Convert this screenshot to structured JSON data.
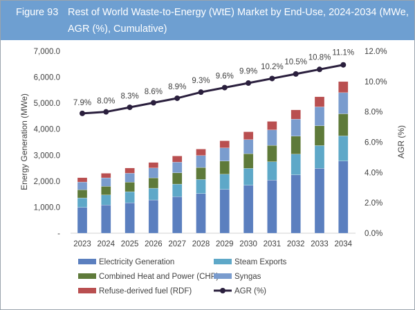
{
  "header": {
    "figure_label": "Figure 93",
    "title": "Rest of World Waste-to-Energy (WtE) Market by End-Use, 2024-2034 (MWe, AGR (%), Cumulative)"
  },
  "chart_data": {
    "type": "bar",
    "stacked": true,
    "categories": [
      "2023",
      "2024",
      "2025",
      "2026",
      "2027",
      "2028",
      "2029",
      "2030",
      "2031",
      "2032",
      "2033",
      "2034"
    ],
    "series": [
      {
        "name": "Electricity Generation",
        "color": "#5b7fbf",
        "values": [
          993,
          1082,
          1170,
          1277,
          1401,
          1525,
          1684,
          1844,
          2039,
          2243,
          2491,
          2774
        ]
      },
      {
        "name": "Steam Exports",
        "color": "#5ea8c8",
        "values": [
          363,
          389,
          426,
          452,
          487,
          540,
          585,
          647,
          709,
          797,
          878,
          967
        ]
      },
      {
        "name": "Combined Heat and Power (CHP)",
        "color": "#5e7a3a",
        "values": [
          311,
          329,
          364,
          399,
          434,
          462,
          505,
          568,
          630,
          692,
          762,
          851
        ]
      },
      {
        "name": "Syngas",
        "color": "#7a9cce",
        "values": [
          301,
          328,
          345,
          380,
          409,
          460,
          506,
          540,
          594,
          656,
          727,
          814
        ]
      },
      {
        "name": "Refuse-derived fuel (RDF)",
        "color": "#b94f50",
        "values": [
          168,
          177,
          203,
          213,
          239,
          249,
          275,
          302,
          328,
          354,
          389,
          426
        ]
      }
    ],
    "line_series": {
      "name": "AGR (%)",
      "color": "#2a1f3d",
      "axis": "right",
      "values": [
        7.9,
        8.0,
        8.3,
        8.6,
        8.9,
        9.3,
        9.6,
        9.9,
        10.2,
        10.5,
        10.8,
        11.1
      ],
      "labels": [
        "7.9%",
        "8.0%",
        "8.3%",
        "8.6%",
        "8.9%",
        "9.3%",
        "9.6%",
        "9.9%",
        "10.2%",
        "10.5%",
        "10.8%",
        "11.1%"
      ]
    },
    "ylabel": "Energy Generation (MWe)",
    "ylabel_right": "AGR (%)",
    "ylim": [
      0,
      7000
    ],
    "ylim_right": [
      0,
      12
    ],
    "yticks": [
      "-",
      "1,000.0",
      "2,000.0",
      "3,000.0",
      "4,000.0",
      "5,000.0",
      "6,000.0",
      "7,000.0"
    ],
    "yticks_right": [
      "0.0%",
      "2.0%",
      "4.0%",
      "6.0%",
      "8.0%",
      "10.0%",
      "12.0%"
    ],
    "grid": false,
    "legend_position": "bottom"
  }
}
